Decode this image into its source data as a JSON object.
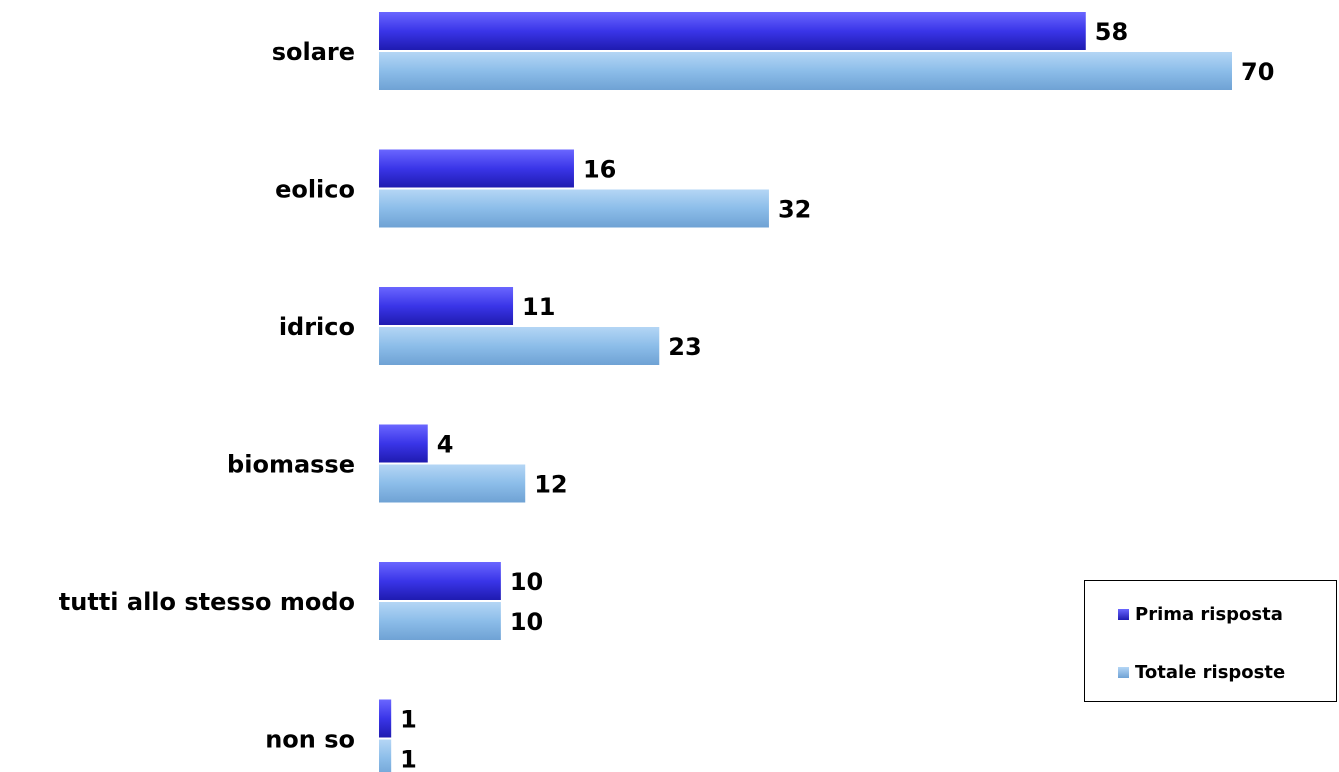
{
  "chart_data": {
    "type": "bar",
    "orientation": "horizontal",
    "categories": [
      "solare",
      "eolico",
      "idrico",
      "biomasse",
      "tutti allo stesso modo",
      "non so"
    ],
    "series": [
      {
        "name": "Prima risposta",
        "values": [
          58,
          16,
          11,
          4,
          10,
          1
        ],
        "color": "#3a35e8"
      },
      {
        "name": "Totale risposte",
        "values": [
          70,
          32,
          23,
          12,
          10,
          1
        ],
        "color": "#8cbde9"
      }
    ],
    "title": "",
    "xlabel": "",
    "ylabel": "",
    "xlim": [
      0,
      70
    ],
    "grid": false,
    "data_labels": true,
    "legend_position": "bottom-right"
  }
}
